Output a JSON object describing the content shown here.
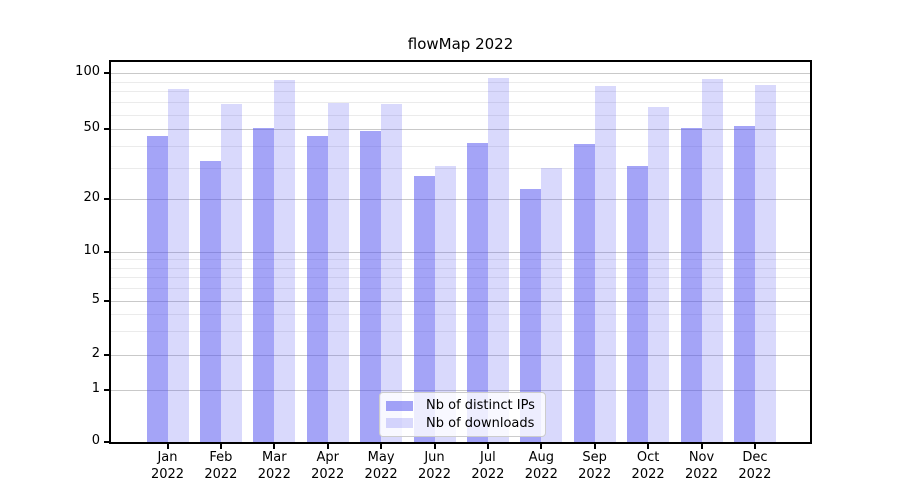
{
  "title": "flowMap 2022",
  "chart_data": {
    "type": "bar",
    "title": "flowMap 2022",
    "categories": [
      "Jan 2022",
      "Feb 2022",
      "Mar 2022",
      "Apr 2022",
      "May 2022",
      "Jun 2022",
      "Jul 2022",
      "Aug 2022",
      "Sep 2022",
      "Oct 2022",
      "Nov 2022",
      "Dec 2022"
    ],
    "series": [
      {
        "name": "Nb of distinct IPs",
        "color": "rgba(80,80,240,0.52)",
        "values": [
          46,
          33,
          51,
          46,
          49,
          27,
          42,
          23,
          41,
          31,
          51,
          52
        ]
      },
      {
        "name": "Nb of downloads",
        "color": "rgba(80,80,240,0.22)",
        "values": [
          82,
          68,
          92,
          69,
          68,
          31,
          94,
          30,
          85,
          66,
          93,
          86
        ]
      }
    ],
    "xlabel": "",
    "ylabel": "",
    "yscale": "symlog",
    "yticks": [
      0,
      1,
      2,
      5,
      10,
      20,
      50,
      100
    ],
    "minor_yticks": [
      3,
      4,
      6,
      7,
      8,
      9,
      30,
      40,
      60,
      70,
      80,
      90
    ],
    "ylim": [
      0,
      115
    ],
    "grid": "horizontal major and minor",
    "legend_position": "lower center"
  },
  "colors": {
    "bar_distinct_ips_rendered": "#a6a6f8",
    "bar_downloads_rendered": "#d9d9fb",
    "grid_major": "#c9c9c9",
    "grid_minor": "#ebebeb",
    "axis": "#000000",
    "background": "#ffffff"
  }
}
